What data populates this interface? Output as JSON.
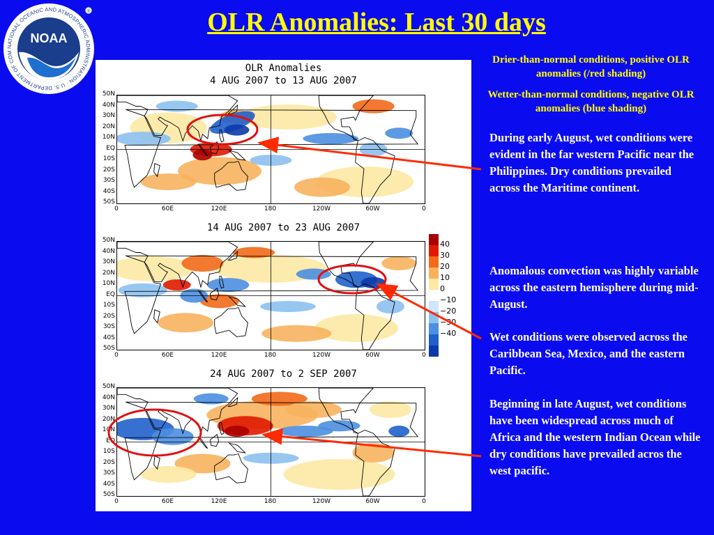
{
  "slide": {
    "title": "OLR Anomalies: Last 30 days",
    "logo": {
      "text": "NOAA",
      "ring_text": "NATIONAL OCEANIC AND ATMOSPHERIC ADMINISTRATION · U.S. DEPARTMENT OF COMMERCE"
    },
    "legend_notes": [
      "Drier-than-normal conditions, positive OLR anomalies (/red shading)",
      "Wetter-than-normal conditions, negative OLR anomalies (blue shading)"
    ],
    "paragraphs": [
      "During early August, wet conditions were evident in the far western Pacific near the Philippines.  Dry conditions prevailed across the Maritime continent.",
      "Anomalous convection was highly variable across the eastern hemisphere during mid-August.",
      "Wet conditions were observed across the Caribbean Sea, Mexico, and the eastern Pacific.",
      "Beginning in late August, wet conditions have been widespread across much of Africa and the western Indian Ocean while dry conditions have prevailed acros the west pacific."
    ]
  },
  "figure": {
    "main_title": "OLR Anomalies",
    "panels": [
      {
        "title": "4 AUG 2007 to 13 AUG 2007"
      },
      {
        "title": "14 AUG 2007 to 23 AUG 2007"
      },
      {
        "title": "24 AUG 2007 to 2 SEP 2007"
      }
    ],
    "lat_labels": [
      "50N",
      "40N",
      "30N",
      "20N",
      "10N",
      "EQ",
      "10S",
      "20S",
      "30S",
      "40S",
      "50S"
    ],
    "lon_labels": [
      "0",
      "60E",
      "120E",
      "180",
      "120W",
      "60W",
      "0"
    ],
    "colorbar": {
      "levels": [
        "40",
        "30",
        "20",
        "10",
        "0",
        "−10",
        "−20",
        "−30",
        "−40"
      ],
      "colors": [
        "#a80000",
        "#e01a00",
        "#f26a1a",
        "#f7b25e",
        "#fde9a4",
        "#ffffff",
        "#cfe6fa",
        "#8cc1f0",
        "#4d8fe0",
        "#2060cc",
        "#0b3aa8"
      ]
    }
  }
}
